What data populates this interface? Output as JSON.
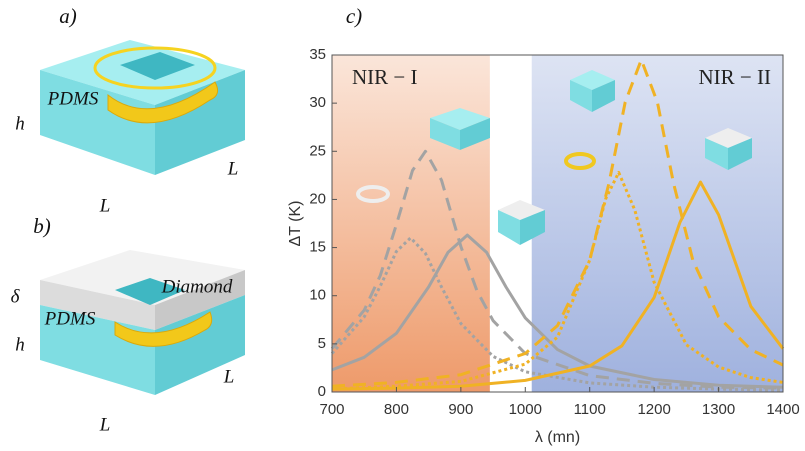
{
  "schematic_labels": [
    "a)",
    "PDMS",
    "h",
    "L",
    "L",
    "b)",
    "δ",
    "PDMS",
    "Diamond",
    "h",
    "L",
    "L"
  ],
  "chart_data": {
    "type": "line",
    "panel_label": "c)",
    "xlabel": "λ (mn)",
    "ylabel": "ΔT (K)",
    "xlim": [
      700,
      1400
    ],
    "ylim": [
      0,
      35
    ],
    "xticks": [
      700,
      800,
      900,
      1000,
      1100,
      1200,
      1300,
      1400
    ],
    "yticks": [
      0,
      5,
      10,
      15,
      20,
      25,
      30,
      35
    ],
    "regions": [
      {
        "label": "NIR − I",
        "range": [
          700,
          945
        ],
        "color": "#ee9a6a"
      },
      {
        "label": "NIR − II",
        "range": [
          1010,
          1400
        ],
        "color": "#9fb1de"
      }
    ],
    "series": [
      {
        "color": "#a3a3a3",
        "dash": "dashed",
        "x": [
          700,
          750,
          775,
          800,
          825,
          845,
          870,
          900,
          925,
          950,
          1000,
          1100,
          1200,
          1300,
          1400
        ],
        "values": [
          4.5,
          8.5,
          12.1,
          17.4,
          23.0,
          25,
          22.0,
          15.1,
          10.5,
          7.4,
          4.0,
          1.7,
          0.9,
          0.5,
          0.4
        ]
      },
      {
        "color": "#a3a3a3",
        "dash": "dotted",
        "x": [
          700,
          750,
          775,
          800,
          822,
          845,
          870,
          900,
          950,
          1000,
          1100,
          1200,
          1300,
          1400
        ],
        "values": [
          4.0,
          7.8,
          11.0,
          14.6,
          16,
          14.4,
          10.9,
          7.1,
          3.7,
          2.1,
          0.95,
          0.5,
          0.3,
          0.2
        ]
      },
      {
        "color": "#a3a3a3",
        "dash": "solid",
        "x": [
          700,
          750,
          800,
          850,
          880,
          910,
          940,
          970,
          1000,
          1050,
          1100,
          1200,
          1300,
          1400
        ],
        "values": [
          2.3,
          3.6,
          6.1,
          10.9,
          14.5,
          16.3,
          14.5,
          10.9,
          7.7,
          4.4,
          2.7,
          1.3,
          0.7,
          0.5
        ]
      },
      {
        "color": "#f0b224",
        "dash": "dotted",
        "x": [
          700,
          800,
          900,
          1000,
          1050,
          1100,
          1125,
          1145,
          1170,
          1200,
          1250,
          1300,
          1350,
          1400
        ],
        "values": [
          0.3,
          0.6,
          1.1,
          2.9,
          5.7,
          13.7,
          20.1,
          22.8,
          18.9,
          11.4,
          4.9,
          2.6,
          1.5,
          1.0
        ]
      },
      {
        "color": "#f0b224",
        "dash": "dashed",
        "x": [
          700,
          800,
          900,
          1000,
          1050,
          1100,
          1130,
          1155,
          1180,
          1205,
          1230,
          1260,
          1300,
          1350,
          1400
        ],
        "values": [
          0.6,
          1.0,
          1.8,
          4.0,
          6.9,
          13.7,
          21.7,
          30.1,
          34.5,
          30.1,
          21.7,
          13.7,
          7.8,
          4.4,
          2.8
        ]
      },
      {
        "color": "#f0b224",
        "dash": "solid",
        "x": [
          700,
          800,
          900,
          1000,
          1100,
          1150,
          1200,
          1240,
          1272,
          1300,
          1350,
          1400
        ],
        "values": [
          0.3,
          0.4,
          0.6,
          1.2,
          2.7,
          4.8,
          9.8,
          17.6,
          21.8,
          18.4,
          8.9,
          4.5
        ]
      }
    ]
  }
}
